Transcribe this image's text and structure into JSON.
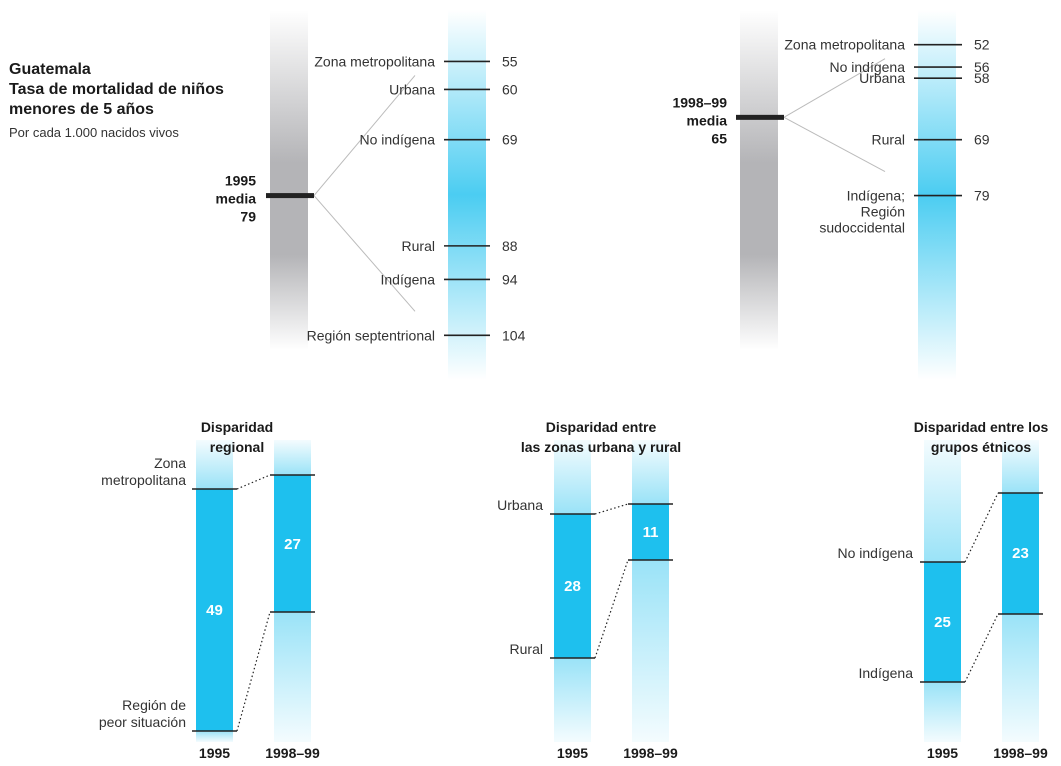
{
  "title_lines": [
    "Guatemala",
    "Tasa de mortalidad de niños",
    "menores de 5 años"
  ],
  "subtitle": "Por cada 1.000 nacidos vivos",
  "colors": {
    "accent": "#1ec0ee",
    "gray": "#b4b4b7",
    "text": "#333333",
    "marker": "#222222"
  },
  "chart_data": [
    {
      "type": "strip",
      "title": "",
      "scale": [
        44,
        112
      ],
      "mean": {
        "lines": [
          "1995",
          "media",
          "79"
        ],
        "value": 79
      },
      "items": [
        {
          "label": [
            "Zona metropolitana"
          ],
          "value": 55
        },
        {
          "label": [
            "Urbana"
          ],
          "value": 60
        },
        {
          "label": [
            "No indígena"
          ],
          "value": 69
        },
        {
          "label": [
            "Rural"
          ],
          "value": 88
        },
        {
          "label": [
            "Indígena"
          ],
          "value": 94
        },
        {
          "label": [
            "Región septentrional"
          ],
          "value": 104
        }
      ]
    },
    {
      "type": "strip",
      "title": "",
      "scale": [
        44,
        112
      ],
      "mean": {
        "lines": [
          "1998–99",
          "media",
          "65"
        ],
        "value": 65
      },
      "items": [
        {
          "label": [
            "Zona metropolitana"
          ],
          "value": 52
        },
        {
          "label": [
            "No indígena"
          ],
          "value": 56
        },
        {
          "label": [
            "Urbana"
          ],
          "value": 58
        },
        {
          "label": [
            "Rural"
          ],
          "value": 69
        },
        {
          "label": [
            "Indígena;",
            "Región",
            "sudoccidental"
          ],
          "value": 79
        }
      ]
    },
    {
      "type": "bar",
      "title_lines": [
        "Disparidad",
        "regional"
      ],
      "categories": [
        "1995",
        "1998–99"
      ],
      "values": [
        49,
        27
      ],
      "top_label": [
        "Zona",
        "metropolitana"
      ],
      "bottom_label": [
        "Región de",
        "peor situación"
      ]
    },
    {
      "type": "bar",
      "title_lines": [
        "Disparidad entre",
        "las zonas urbana y rural"
      ],
      "categories": [
        "1995",
        "1998–99"
      ],
      "values": [
        28,
        11
      ],
      "top_label": [
        "Urbana"
      ],
      "bottom_label": [
        "Rural"
      ]
    },
    {
      "type": "bar",
      "title_lines": [
        "Disparidad entre los",
        "grupos étnicos"
      ],
      "categories": [
        "1995",
        "1998–99"
      ],
      "values": [
        25,
        23
      ],
      "top_label": [
        "No indígena"
      ],
      "bottom_label": [
        "Indígena"
      ]
    }
  ]
}
